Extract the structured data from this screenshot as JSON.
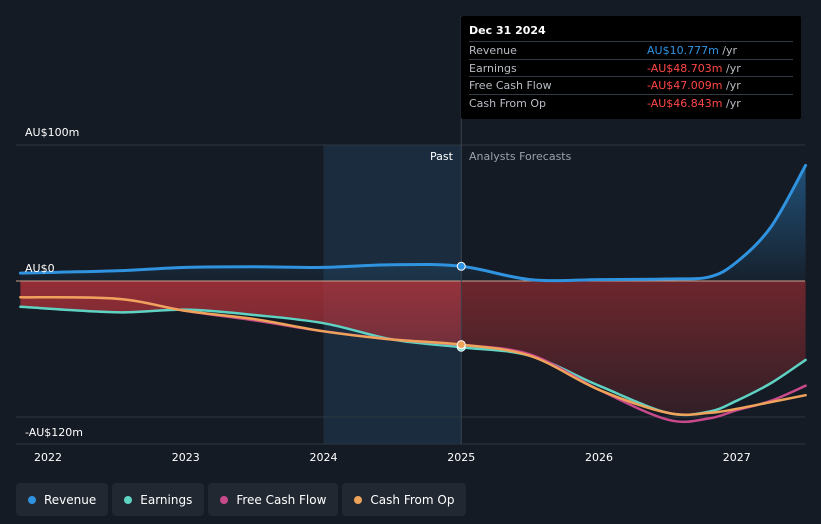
{
  "chart_data": {
    "type": "line",
    "title": "",
    "y_unit_labels": {
      "top": "AU$100m",
      "zero": "AU$0",
      "bottom": "-AU$120m"
    },
    "ylim": [
      -120,
      100
    ],
    "xlim": [
      2022,
      2027.5
    ],
    "x_ticks": [
      "2022",
      "2023",
      "2024",
      "2025",
      "2026",
      "2027"
    ],
    "period_labels": {
      "past": "Past",
      "forecast": "Analysts Forecasts"
    },
    "divider_x": 2025,
    "highlight_start_x": 2024,
    "series": [
      {
        "name": "Revenue",
        "color": "#2f93e0",
        "points": [
          [
            2021.8,
            5.8
          ],
          [
            2022.5,
            7.5
          ],
          [
            2023.0,
            10.0
          ],
          [
            2023.5,
            10.5
          ],
          [
            2024.0,
            10.0
          ],
          [
            2024.5,
            12.0
          ],
          [
            2025.0,
            10.8
          ],
          [
            2025.5,
            1.0
          ],
          [
            2026.0,
            1.0
          ],
          [
            2026.5,
            1.5
          ],
          [
            2026.8,
            3.0
          ],
          [
            2027.0,
            14.0
          ],
          [
            2027.25,
            40.0
          ],
          [
            2027.5,
            85.0
          ]
        ]
      },
      {
        "name": "Earnings",
        "color": "#5fd3c3",
        "points": [
          [
            2021.8,
            -19.0
          ],
          [
            2022.5,
            -23.0
          ],
          [
            2023.0,
            -21.0
          ],
          [
            2023.5,
            -25.0
          ],
          [
            2024.0,
            -31.0
          ],
          [
            2024.5,
            -43.0
          ],
          [
            2025.0,
            -48.7
          ],
          [
            2025.5,
            -55.0
          ],
          [
            2026.0,
            -77.0
          ],
          [
            2026.5,
            -97.0
          ],
          [
            2026.8,
            -96.0
          ],
          [
            2027.0,
            -88.0
          ],
          [
            2027.25,
            -75.0
          ],
          [
            2027.5,
            -58.0
          ]
        ]
      },
      {
        "name": "Free Cash Flow",
        "color": "#c84a8b",
        "points": [
          [
            2021.8,
            -12.0
          ],
          [
            2022.5,
            -13.0
          ],
          [
            2023.0,
            -22.0
          ],
          [
            2023.5,
            -29.0
          ],
          [
            2024.0,
            -37.0
          ],
          [
            2024.5,
            -43.0
          ],
          [
            2025.0,
            -47.0
          ],
          [
            2025.5,
            -54.0
          ],
          [
            2026.0,
            -80.0
          ],
          [
            2026.5,
            -102.0
          ],
          [
            2026.8,
            -101.0
          ],
          [
            2027.0,
            -95.0
          ],
          [
            2027.25,
            -88.0
          ],
          [
            2027.5,
            -77.0
          ]
        ]
      },
      {
        "name": "Cash From Op",
        "color": "#efa35a",
        "points": [
          [
            2021.8,
            -12.0
          ],
          [
            2022.5,
            -13.0
          ],
          [
            2023.0,
            -22.0
          ],
          [
            2023.5,
            -28.0
          ],
          [
            2024.0,
            -37.0
          ],
          [
            2024.5,
            -43.0
          ],
          [
            2025.0,
            -46.8
          ],
          [
            2025.5,
            -55.0
          ],
          [
            2026.0,
            -80.0
          ],
          [
            2026.5,
            -97.0
          ],
          [
            2026.8,
            -97.0
          ],
          [
            2027.0,
            -94.0
          ],
          [
            2027.25,
            -89.0
          ],
          [
            2027.5,
            -84.0
          ]
        ]
      }
    ]
  },
  "tooltip": {
    "date": "Dec 31 2024",
    "rows": [
      {
        "label": "Revenue",
        "value": "AU$10.777m",
        "unit": " /yr",
        "color": "#2f93e0"
      },
      {
        "label": "Earnings",
        "value": "-AU$48.703m",
        "unit": " /yr",
        "color": "#ff4747"
      },
      {
        "label": "Free Cash Flow",
        "value": "-AU$47.009m",
        "unit": " /yr",
        "color": "#ff4747"
      },
      {
        "label": "Cash From Op",
        "value": "-AU$46.843m",
        "unit": " /yr",
        "color": "#ff4747"
      }
    ]
  },
  "legend": [
    {
      "label": "Revenue",
      "color": "#2f93e0"
    },
    {
      "label": "Earnings",
      "color": "#5fd3c3"
    },
    {
      "label": "Free Cash Flow",
      "color": "#c84a8b"
    },
    {
      "label": "Cash From Op",
      "color": "#efa35a"
    }
  ]
}
